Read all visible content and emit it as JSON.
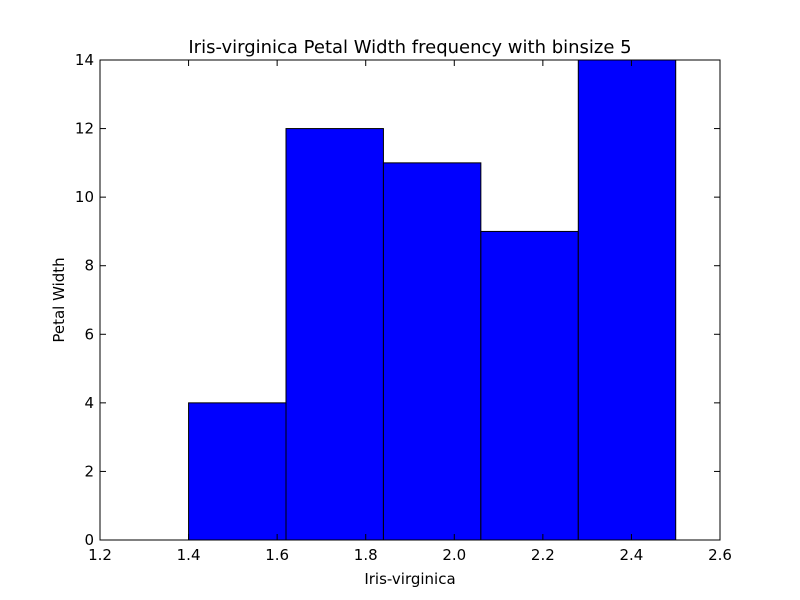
{
  "chart_data": {
    "type": "bar",
    "title": "Iris-virginica Petal Width frequency with binsize 5",
    "xlabel": "Iris-virginica",
    "ylabel": "Petal Width",
    "xlim": [
      1.2,
      2.6
    ],
    "ylim": [
      0,
      14
    ],
    "xticks": [
      "1.2",
      "1.4",
      "1.6",
      "1.8",
      "2.0",
      "2.2",
      "2.4",
      "2.6"
    ],
    "yticks": [
      "0",
      "2",
      "4",
      "6",
      "8",
      "10",
      "12",
      "14"
    ],
    "bins": [
      {
        "start": 1.4,
        "end": 1.62,
        "count": 4
      },
      {
        "start": 1.62,
        "end": 1.84,
        "count": 12
      },
      {
        "start": 1.84,
        "end": 2.06,
        "count": 11
      },
      {
        "start": 2.06,
        "end": 2.28,
        "count": 9
      },
      {
        "start": 2.28,
        "end": 2.5,
        "count": 14
      }
    ],
    "bar_color": "#0000ff",
    "grid": false
  }
}
